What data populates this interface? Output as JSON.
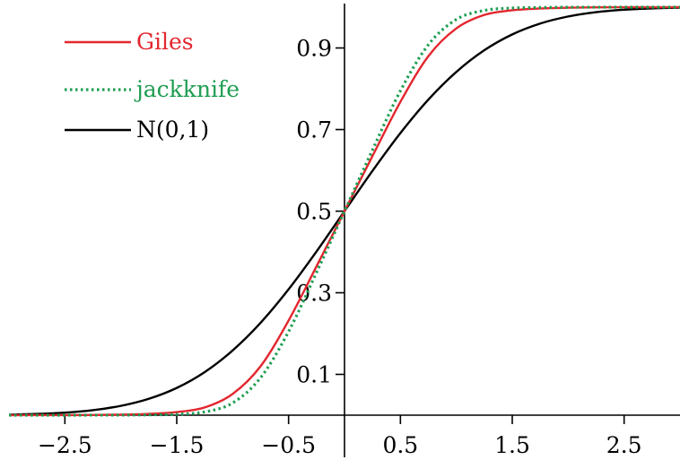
{
  "chart_data": {
    "type": "line",
    "title": "",
    "xlabel": "",
    "ylabel": "",
    "xlim": [
      -3.0,
      3.0
    ],
    "ylim": [
      0.0,
      1.0
    ],
    "grid": false,
    "legend_position": "top-left",
    "x_ticks": [
      -2.5,
      -1.5,
      -0.5,
      0.5,
      1.5,
      2.5
    ],
    "x_tick_labels": [
      "−2.5",
      "−1.5",
      "−0.5",
      "0.5",
      "1.5",
      "2.5"
    ],
    "y_ticks": [
      0.1,
      0.3,
      0.5,
      0.7,
      0.9
    ],
    "y_tick_labels": [
      "0.1",
      "0.3",
      "0.5",
      "0.7",
      "0.9"
    ],
    "x": [
      -3.0,
      -2.75,
      -2.5,
      -2.25,
      -2.0,
      -1.75,
      -1.5,
      -1.25,
      -1.0,
      -0.75,
      -0.5,
      -0.25,
      0.0,
      0.25,
      0.5,
      0.75,
      1.0,
      1.25,
      1.5,
      1.75,
      2.0,
      2.25,
      2.5,
      2.75,
      3.0
    ],
    "series": [
      {
        "name": "Giles",
        "color": "#e3262e",
        "dash": "solid",
        "values": [
          0.0,
          0.0001,
          0.0002,
          0.0005,
          0.0013,
          0.0032,
          0.0076,
          0.019,
          0.052,
          0.12,
          0.232,
          0.365,
          0.5,
          0.635,
          0.768,
          0.88,
          0.948,
          0.981,
          0.9924,
          0.9968,
          0.9987,
          0.9995,
          0.9998,
          0.9999,
          1.0
        ]
      },
      {
        "name": "jackknife",
        "color": "#1e9e52",
        "dash": "dotted",
        "values": [
          0.0,
          0.0,
          0.0,
          0.0001,
          0.0002,
          0.0008,
          0.0022,
          0.008,
          0.03,
          0.092,
          0.205,
          0.35,
          0.5,
          0.65,
          0.795,
          0.908,
          0.97,
          0.992,
          0.9978,
          0.9992,
          0.9998,
          0.9999,
          1.0,
          1.0,
          1.0
        ]
      },
      {
        "name": "N(0,1)",
        "color": "#000000",
        "dash": "solid",
        "values": [
          0.0013,
          0.003,
          0.0062,
          0.0122,
          0.0228,
          0.0401,
          0.0668,
          0.1056,
          0.1587,
          0.2266,
          0.3085,
          0.4013,
          0.5,
          0.5987,
          0.6915,
          0.7734,
          0.8413,
          0.8944,
          0.9332,
          0.9599,
          0.9772,
          0.9878,
          0.9938,
          0.997,
          0.9987
        ]
      }
    ]
  }
}
